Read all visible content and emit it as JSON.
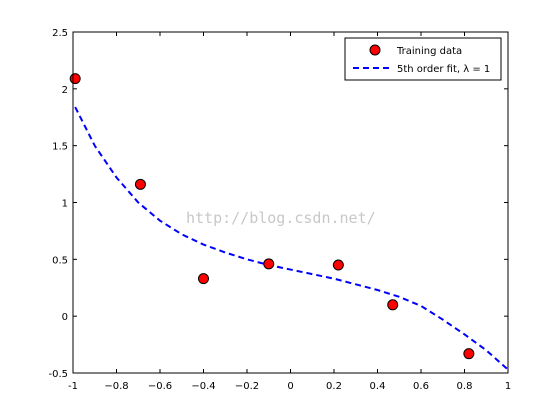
{
  "chart_data": {
    "type": "scatter",
    "xlim": [
      -1,
      1
    ],
    "ylim": [
      -0.5,
      2.5
    ],
    "x_ticks": [
      -1,
      -0.8,
      -0.6,
      -0.4,
      -0.2,
      0,
      0.2,
      0.4,
      0.6,
      0.8,
      1
    ],
    "x_tick_labels": [
      "-1",
      "−0.8",
      "−0.6",
      "−0.4",
      "−0.2",
      "0",
      "0.2",
      "0.4",
      "0.6",
      "0.8",
      "1"
    ],
    "y_ticks": [
      -0.5,
      0,
      0.5,
      1,
      1.5,
      2,
      2.5
    ],
    "y_tick_labels": [
      "-0.5",
      "0",
      "0.5",
      "1",
      "1.5",
      "2",
      "2.5"
    ],
    "grid": false,
    "legend_position": "top-right",
    "series": [
      {
        "name": "Training data",
        "type": "scatter",
        "marker_face": "#ff0000",
        "marker_edge": "#000000",
        "points": [
          {
            "x": -0.99,
            "y": 2.09
          },
          {
            "x": -0.69,
            "y": 1.16
          },
          {
            "x": -0.4,
            "y": 0.33
          },
          {
            "x": -0.1,
            "y": 0.46
          },
          {
            "x": 0.22,
            "y": 0.45
          },
          {
            "x": 0.47,
            "y": 0.1
          },
          {
            "x": 0.82,
            "y": -0.33
          }
        ]
      },
      {
        "name": "5th order fit, λ = 1",
        "type": "line",
        "style": "dashed",
        "color": "#0000ff",
        "points": [
          {
            "x": -0.99,
            "y": 1.84
          },
          {
            "x": -0.9,
            "y": 1.5
          },
          {
            "x": -0.8,
            "y": 1.22
          },
          {
            "x": -0.7,
            "y": 1.0
          },
          {
            "x": -0.6,
            "y": 0.84
          },
          {
            "x": -0.5,
            "y": 0.72
          },
          {
            "x": -0.4,
            "y": 0.63
          },
          {
            "x": -0.3,
            "y": 0.56
          },
          {
            "x": -0.2,
            "y": 0.5
          },
          {
            "x": -0.1,
            "y": 0.45
          },
          {
            "x": 0.0,
            "y": 0.41
          },
          {
            "x": 0.1,
            "y": 0.37
          },
          {
            "x": 0.2,
            "y": 0.33
          },
          {
            "x": 0.3,
            "y": 0.28
          },
          {
            "x": 0.4,
            "y": 0.23
          },
          {
            "x": 0.5,
            "y": 0.17
          },
          {
            "x": 0.6,
            "y": 0.09
          },
          {
            "x": 0.7,
            "y": -0.03
          },
          {
            "x": 0.8,
            "y": -0.16
          },
          {
            "x": 0.9,
            "y": -0.3
          },
          {
            "x": 1.0,
            "y": -0.47
          }
        ]
      }
    ]
  },
  "watermark": "http://blog.csdn.net/"
}
